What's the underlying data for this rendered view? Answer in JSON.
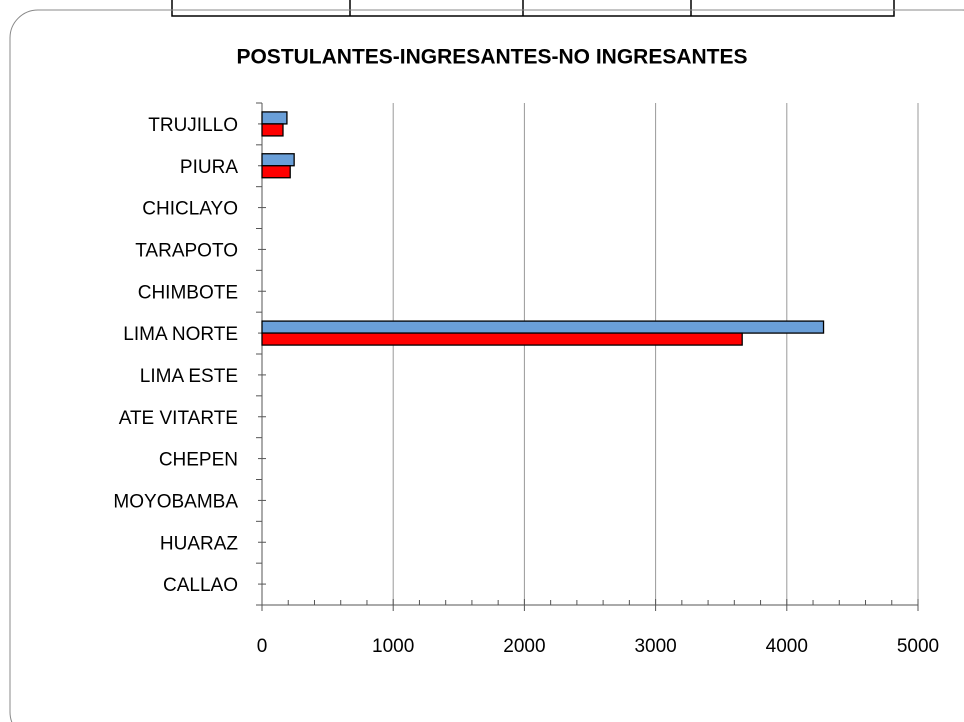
{
  "chart_data": {
    "type": "bar",
    "orientation": "horizontal",
    "title": "POSTULANTES-INGRESANTES-NO INGRESANTES",
    "categories": [
      "TRUJILLO",
      "PIURA",
      "CHICLAYO",
      "TARAPOTO",
      "CHIMBOTE",
      "LIMA NORTE",
      "LIMA ESTE",
      "ATE VITARTE",
      "CHEPEN",
      "MOYOBAMBA",
      "HUARAZ",
      "CALLAO"
    ],
    "series": [
      {
        "color": "#6a9fd8",
        "values": [
          190,
          245,
          0,
          0,
          0,
          4280,
          0,
          0,
          0,
          0,
          0,
          0
        ]
      },
      {
        "color": "#ff0000",
        "values": [
          160,
          215,
          0,
          0,
          0,
          3660,
          0,
          0,
          0,
          0,
          0,
          0
        ]
      }
    ],
    "xlim": [
      0,
      5000
    ],
    "xticks": [
      0,
      1000,
      2000,
      3000,
      4000,
      5000
    ],
    "grid": true
  }
}
